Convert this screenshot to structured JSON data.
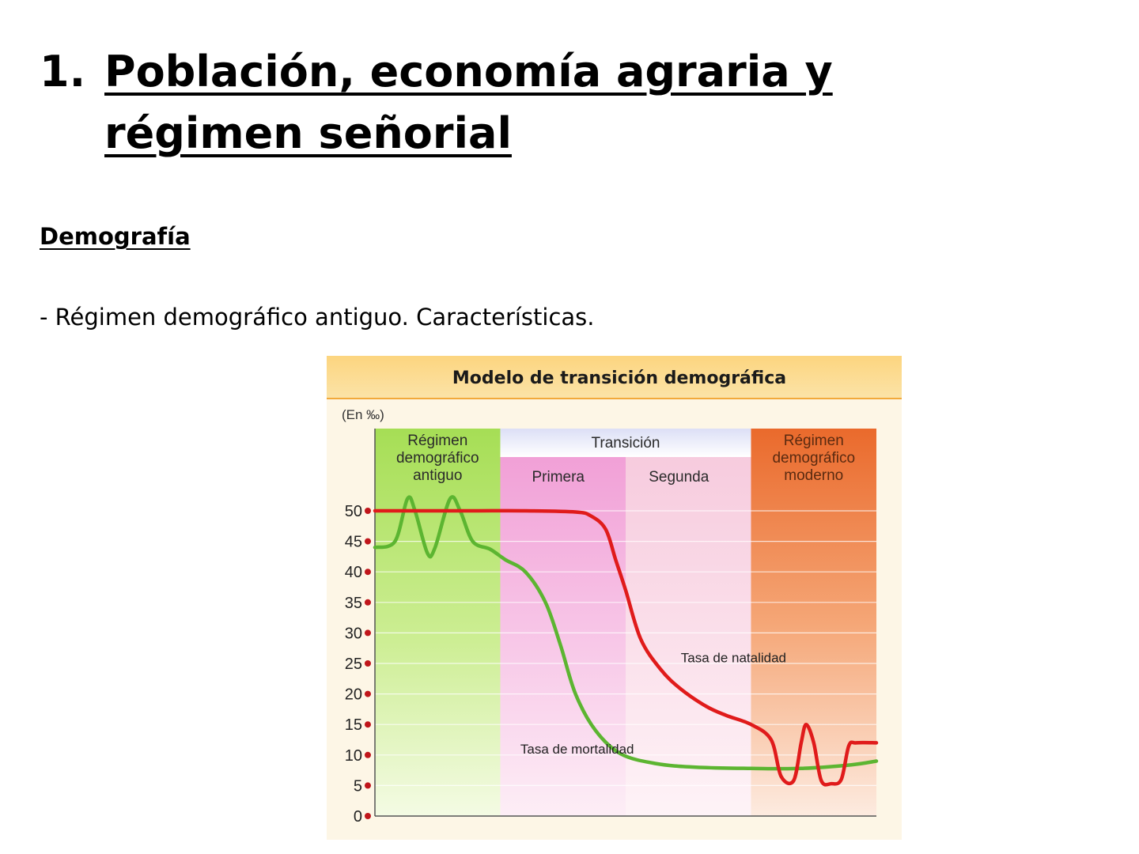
{
  "heading": {
    "number": "1.",
    "title": "Población, economía agraria y régimen señorial"
  },
  "section": {
    "title": "Demografía"
  },
  "bullet": {
    "text": "- Régimen demográfico antiguo. Características."
  },
  "colors": {
    "header_bg": "#fbd27a",
    "stage_antiguo": "#a9e05a",
    "stage_primera": "#f1a0d6",
    "stage_segunda": "#f8d2e0",
    "stage_moderno": "#ee7a3c",
    "natalidad": "#e01b1b",
    "mortalidad": "#5cb531",
    "tick_dot": "#c0161b"
  },
  "chart_data": {
    "type": "line",
    "title": "Modelo de transición demográfica",
    "ylabel": "(En ‰)",
    "xlabel": "",
    "ylim": [
      0,
      50
    ],
    "yticks": [
      "0",
      "5",
      "10",
      "15",
      "20",
      "25",
      "30",
      "35",
      "40",
      "45",
      "50"
    ],
    "grid": true,
    "stages": [
      {
        "label": "Régimen demográfico antiguo",
        "lines": [
          "Régimen",
          "demográfico",
          "antiguo"
        ]
      },
      {
        "label": "Transición",
        "substages": [
          "Primera",
          "Segunda"
        ]
      },
      {
        "label": "Régimen demográfico moderno",
        "lines": [
          "Régimen",
          "demográfico",
          "moderno"
        ]
      }
    ],
    "x_domain": [
      0,
      100
    ],
    "stage_bounds": [
      0,
      25,
      50,
      75,
      100
    ],
    "series": [
      {
        "name": "Tasa de natalidad",
        "points": [
          [
            0,
            50
          ],
          [
            10,
            50
          ],
          [
            20,
            50
          ],
          [
            30,
            50
          ],
          [
            40,
            49.8
          ],
          [
            43,
            49.2
          ],
          [
            46,
            47
          ],
          [
            48,
            42
          ],
          [
            50,
            37
          ],
          [
            53,
            29
          ],
          [
            57,
            24
          ],
          [
            61,
            20.8
          ],
          [
            66,
            18
          ],
          [
            70,
            16.5
          ],
          [
            75,
            15
          ],
          [
            79,
            12.5
          ],
          [
            81,
            6.5
          ],
          [
            83.5,
            5.8
          ],
          [
            85,
            12
          ],
          [
            86,
            15
          ],
          [
            87.5,
            12
          ],
          [
            89,
            5.8
          ],
          [
            91,
            5.3
          ],
          [
            93,
            6
          ],
          [
            94.5,
            11.5
          ],
          [
            96,
            12
          ],
          [
            100,
            12
          ]
        ]
      },
      {
        "name": "Tasa de mortalidad",
        "points": [
          [
            0,
            44
          ],
          [
            4,
            45
          ],
          [
            6.5,
            52
          ],
          [
            8,
            50
          ],
          [
            10.5,
            43
          ],
          [
            12,
            44
          ],
          [
            15,
            52
          ],
          [
            17,
            50
          ],
          [
            19.5,
            45
          ],
          [
            23,
            43.7
          ],
          [
            26,
            42
          ],
          [
            30,
            40
          ],
          [
            34,
            35
          ],
          [
            37,
            28
          ],
          [
            40,
            20
          ],
          [
            44,
            14
          ],
          [
            49,
            10.2
          ],
          [
            56,
            8.6
          ],
          [
            64,
            8
          ],
          [
            75,
            7.8
          ],
          [
            85,
            7.8
          ],
          [
            95,
            8.4
          ],
          [
            100,
            9
          ]
        ]
      }
    ]
  }
}
